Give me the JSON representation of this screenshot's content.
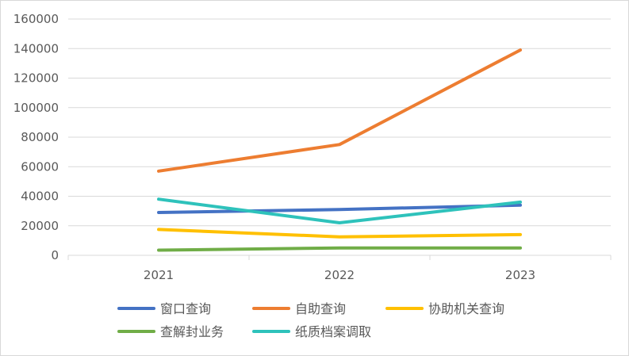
{
  "chart_data": {
    "type": "line",
    "title": "",
    "xlabel": "",
    "ylabel": "",
    "categories": [
      "2021",
      "2022",
      "2023"
    ],
    "ylim": [
      0,
      160000
    ],
    "yticks": [
      0,
      20000,
      40000,
      60000,
      80000,
      100000,
      120000,
      140000,
      160000
    ],
    "grid": true,
    "legend_position": "bottom",
    "series": [
      {
        "name": "窗口查询",
        "color": "#4472C4",
        "values": [
          29000,
          31000,
          34000
        ]
      },
      {
        "name": "自助查询",
        "color": "#ED7D31",
        "values": [
          57000,
          75000,
          139000
        ]
      },
      {
        "name": "协助机关查询",
        "color": "#FFC000",
        "values": [
          17500,
          12500,
          14000
        ]
      },
      {
        "name": "查解封业务",
        "color": "#70AD47",
        "values": [
          3500,
          5000,
          5000
        ]
      },
      {
        "name": "纸质档案调取",
        "color": "#2EC2BB",
        "values": [
          38000,
          22000,
          36000
        ]
      }
    ]
  }
}
